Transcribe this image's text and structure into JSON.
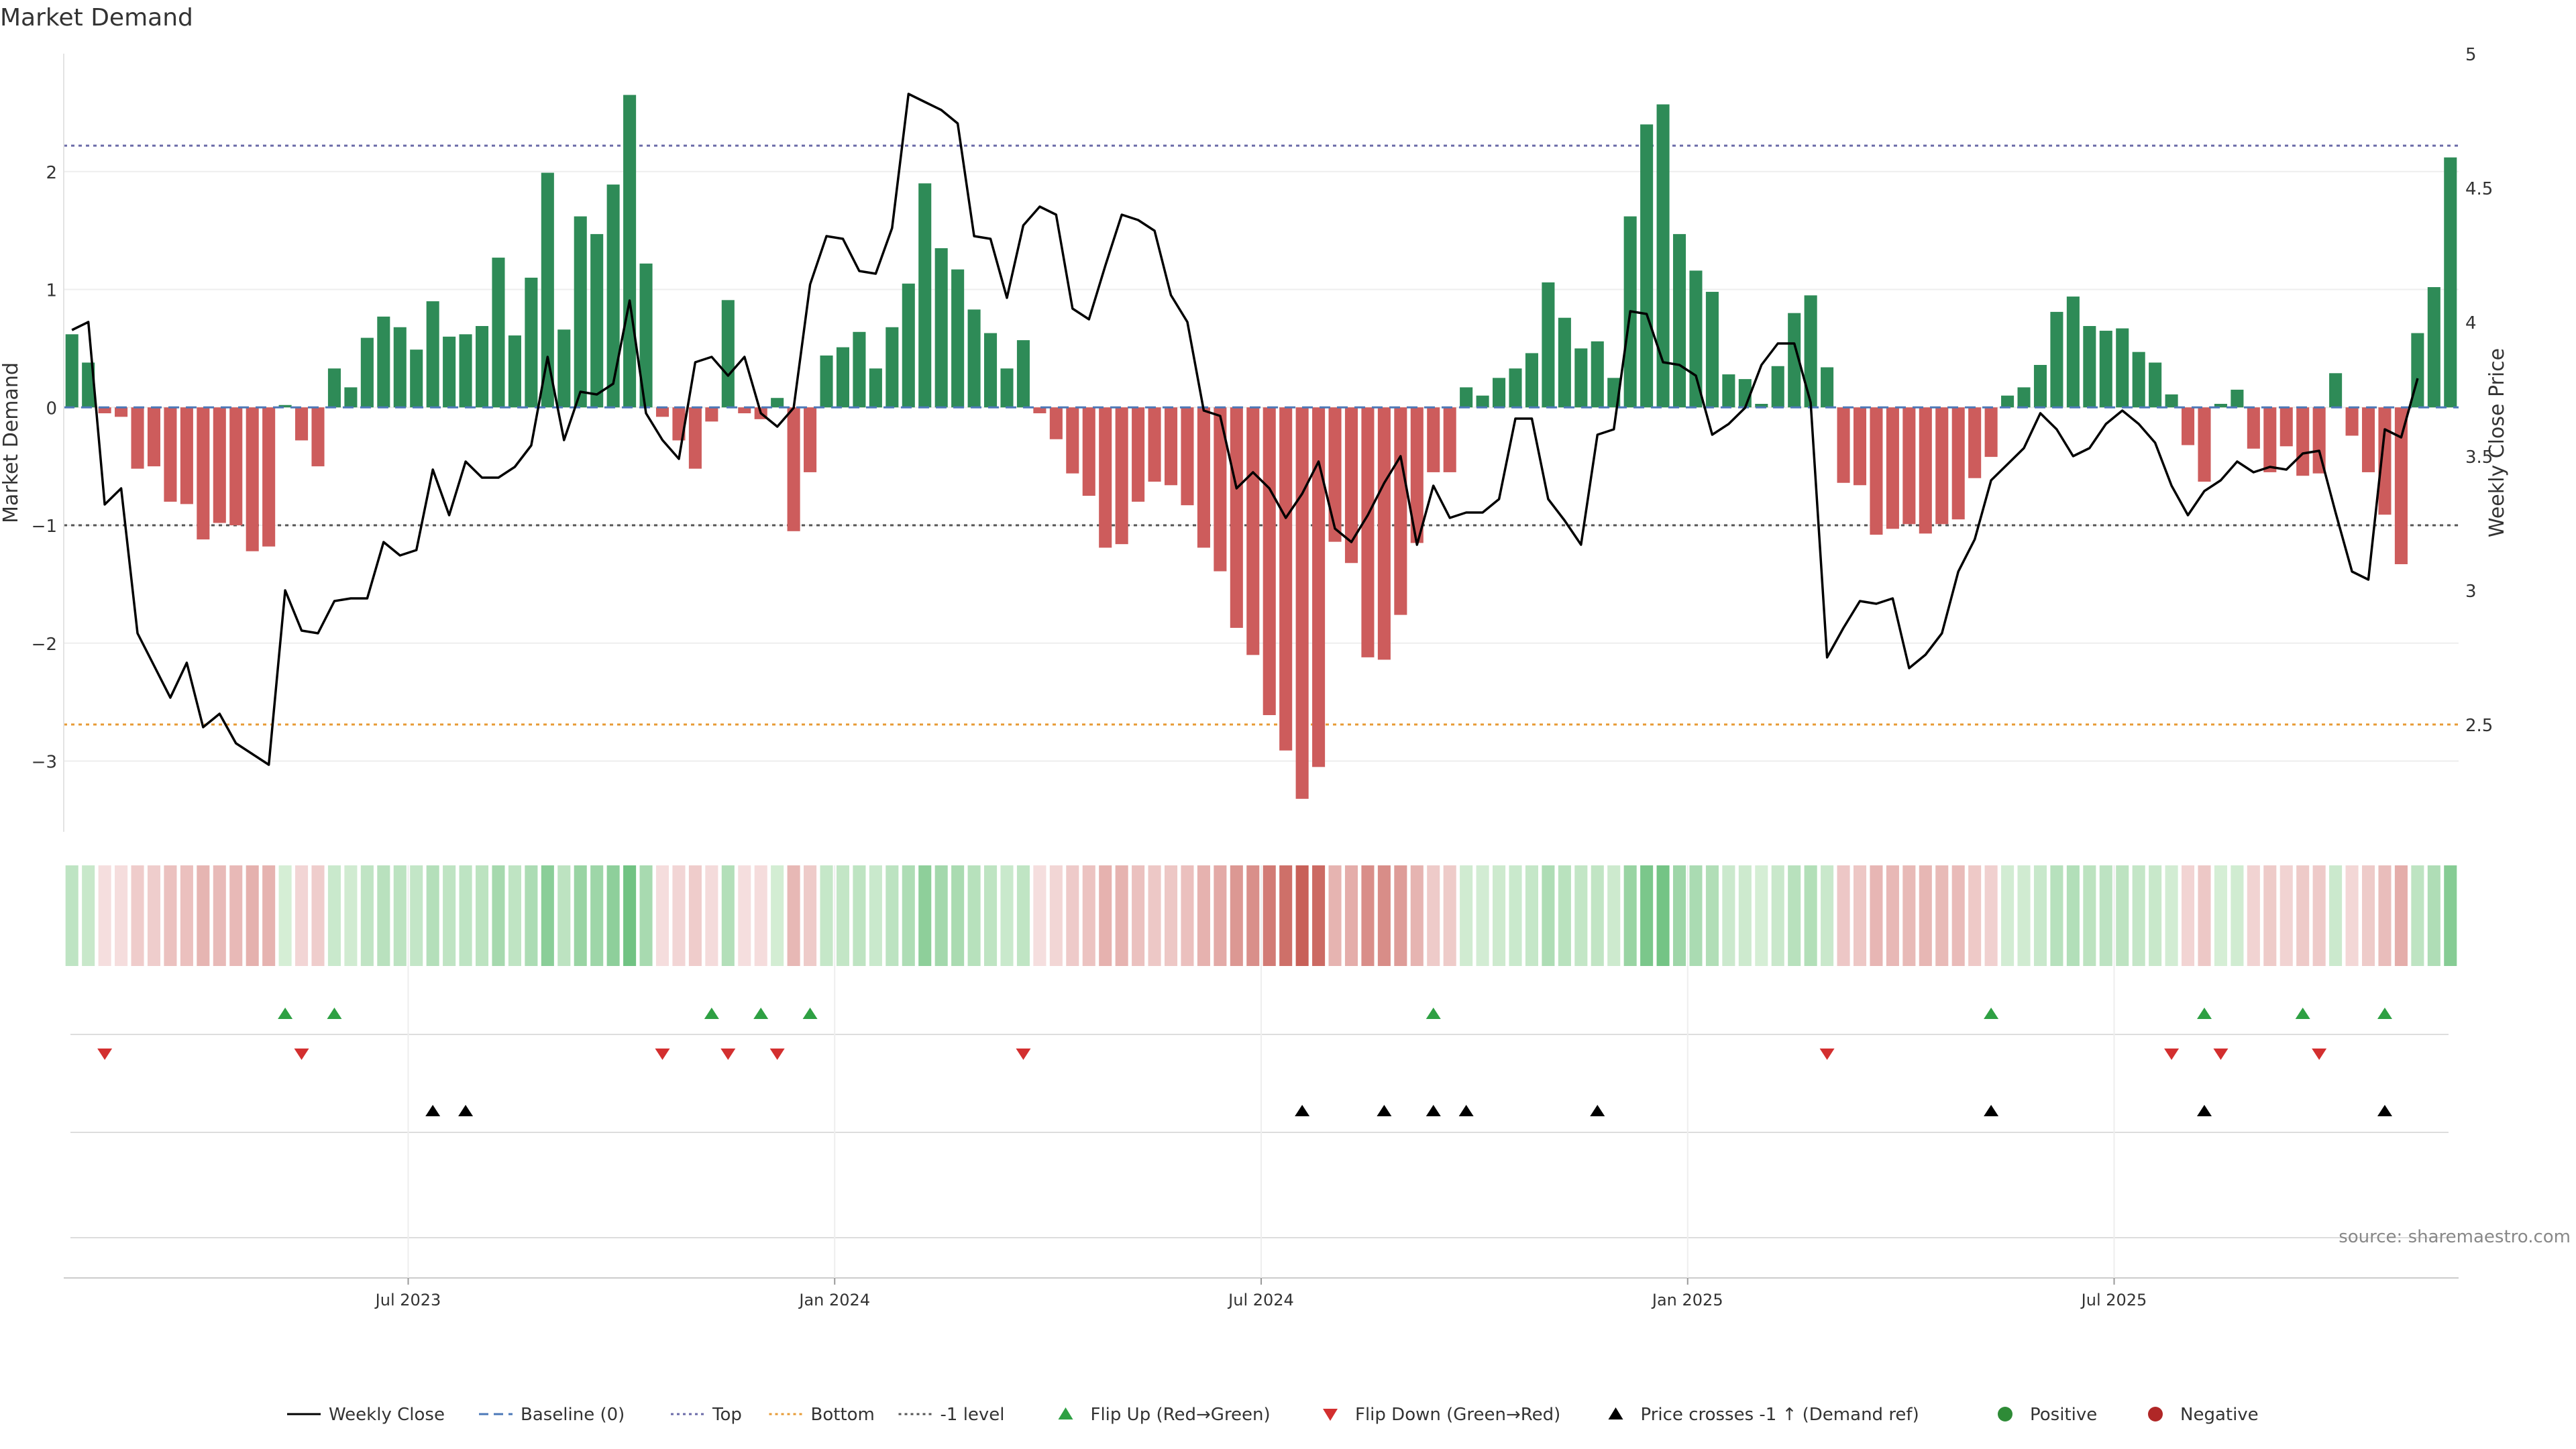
{
  "chart_data": {
    "type": "bar",
    "title": "Market Demand",
    "ylabel": "Market Demand",
    "y2label": "Weekly Close Price",
    "ylim": [
      -3.6,
      3.0
    ],
    "y2lim": [
      2.1,
      5.0
    ],
    "yticks": [
      2,
      1,
      0,
      -1,
      -2,
      -3
    ],
    "y2ticks": [
      5,
      4.5,
      4,
      3.5,
      3,
      2.5
    ],
    "ytick_labels": [
      "2",
      "1",
      "0",
      "−1",
      "−2",
      "−3"
    ],
    "y2tick_labels": [
      "5",
      "4.5",
      "4",
      "3.5",
      "3",
      "2.5"
    ],
    "levels": {
      "top": 2.22,
      "bottom": -2.69,
      "minus_one": -1.0,
      "baseline": 0
    },
    "x_start": "2023-02-05",
    "x_end": "2025-11-02",
    "x_tick_labels": [
      "Jul 2023",
      "Jan 2024",
      "Jul 2024",
      "Jan 2025",
      "Jul 2025"
    ],
    "x_tick_weeks": [
      21,
      47,
      73,
      99,
      125
    ],
    "demand": [
      0.62,
      0.38,
      -0.05,
      -0.08,
      -0.52,
      -0.5,
      -0.8,
      -0.82,
      -1.12,
      -0.98,
      -1.0,
      -1.22,
      -1.18,
      0.02,
      -0.28,
      -0.5,
      0.33,
      0.17,
      0.59,
      0.77,
      0.68,
      0.49,
      0.9,
      0.6,
      0.62,
      0.69,
      1.27,
      0.61,
      1.1,
      1.99,
      0.66,
      1.62,
      1.47,
      1.89,
      2.65,
      1.22,
      -0.08,
      -0.28,
      -0.52,
      -0.12,
      0.91,
      -0.05,
      -0.1,
      0.08,
      -1.05,
      -0.55,
      0.44,
      0.51,
      0.64,
      0.33,
      0.68,
      1.05,
      1.9,
      1.35,
      1.17,
      0.83,
      0.63,
      0.33,
      0.57,
      -0.05,
      -0.27,
      -0.56,
      -0.75,
      -1.19,
      -1.16,
      -0.8,
      -0.63,
      -0.66,
      -0.83,
      -1.19,
      -1.39,
      -1.87,
      -2.1,
      -2.61,
      -2.91,
      -3.32,
      -3.05,
      -1.14,
      -1.32,
      -2.12,
      -2.14,
      -1.76,
      -1.15,
      -0.55,
      -0.55,
      0.17,
      0.1,
      0.25,
      0.33,
      0.46,
      1.06,
      0.76,
      0.5,
      0.56,
      0.25,
      1.62,
      2.4,
      2.57,
      1.47,
      1.16,
      0.98,
      0.28,
      0.24,
      0.03,
      0.35,
      0.8,
      0.95,
      0.34,
      -0.64,
      -0.66,
      -1.08,
      -1.03,
      -0.99,
      -1.07,
      -0.99,
      -0.95,
      -0.6,
      -0.42,
      0.1,
      0.17,
      0.36,
      0.81,
      0.94,
      0.69,
      0.65,
      0.67,
      0.47,
      0.38,
      0.11,
      -0.32,
      -0.63,
      0.03,
      0.15,
      -0.35,
      -0.55,
      -0.33,
      -0.58,
      -0.56,
      0.29,
      -0.24,
      -0.55,
      -0.91,
      -1.33,
      0.63,
      1.02,
      2.12
    ],
    "close": [
      3.97,
      4.0,
      3.32,
      3.38,
      2.84,
      2.72,
      2.6,
      2.73,
      2.49,
      2.54,
      2.43,
      2.39,
      2.35,
      3.0,
      2.85,
      2.84,
      2.96,
      2.97,
      2.97,
      3.18,
      3.13,
      3.15,
      3.45,
      3.28,
      3.48,
      3.42,
      3.42,
      3.46,
      3.54,
      3.87,
      3.56,
      3.74,
      3.73,
      3.77,
      4.08,
      3.66,
      3.56,
      3.49,
      3.85,
      3.87,
      3.8,
      3.87,
      3.66,
      3.61,
      3.68,
      4.14,
      4.32,
      4.31,
      4.19,
      4.18,
      4.35,
      4.85,
      4.82,
      4.79,
      4.74,
      4.32,
      4.31,
      4.09,
      4.36,
      4.43,
      4.4,
      4.05,
      4.01,
      4.21,
      4.4,
      4.38,
      4.34,
      4.1,
      4.0,
      3.67,
      3.65,
      3.38,
      3.44,
      3.38,
      3.27,
      3.36,
      3.48,
      3.23,
      3.18,
      3.28,
      3.4,
      3.5,
      3.17,
      3.39,
      3.27,
      3.29,
      3.29,
      3.34,
      3.64,
      3.64,
      3.34,
      3.26,
      3.17,
      3.58,
      3.6,
      4.04,
      4.03,
      3.85,
      3.84,
      3.8,
      3.58,
      3.62,
      3.68,
      3.84,
      3.92,
      3.92,
      3.7,
      2.75,
      2.86,
      2.96,
      2.95,
      2.97,
      2.71,
      2.76,
      2.84,
      3.07,
      3.19,
      3.41,
      3.47,
      3.53,
      3.66,
      3.6,
      3.5,
      3.53,
      3.62,
      3.67,
      3.62,
      3.55,
      3.39,
      3.28,
      3.37,
      3.41,
      3.48,
      3.44,
      3.46,
      3.45,
      3.51,
      3.52,
      3.29,
      3.07,
      3.04,
      3.6,
      3.57,
      3.79
    ],
    "flip_up_weeks": [
      13,
      16,
      39,
      42,
      45,
      83,
      117,
      130,
      136,
      141
    ],
    "flip_down_weeks": [
      2,
      14,
      36,
      40,
      43,
      58,
      107,
      128,
      131,
      137
    ],
    "price_cross_weeks": [
      22,
      24,
      75,
      80,
      83,
      85,
      93,
      117,
      130,
      141
    ],
    "legend": [
      {
        "label": "Weekly Close",
        "kind": "line",
        "color": "#000000",
        "dash": "solid"
      },
      {
        "label": "Baseline (0)",
        "kind": "line",
        "color": "#4c78b8",
        "dash": "dashed"
      },
      {
        "label": "Top",
        "kind": "line",
        "color": "#6b6ba8",
        "dash": "dotted"
      },
      {
        "label": "Bottom",
        "kind": "line",
        "color": "#e79b35",
        "dash": "dotted"
      },
      {
        "label": "-1 level",
        "kind": "line",
        "color": "#555555",
        "dash": "dotted"
      },
      {
        "label": "Flip Up (Red→Green)",
        "kind": "tri-up",
        "color": "#2ea043"
      },
      {
        "label": "Flip Down (Green→Red)",
        "kind": "tri-down",
        "color": "#d32f2f"
      },
      {
        "label": "Price crosses -1 ↑ (Demand ref)",
        "kind": "tri-up",
        "color": "#000000"
      },
      {
        "label": "Positive",
        "kind": "dot",
        "color": "#2e8b37"
      },
      {
        "label": "Negative",
        "kind": "dot",
        "color": "#b02727"
      }
    ]
  },
  "colors": {
    "positive_bar": "#2e8b57",
    "negative_bar": "#cd5c5c",
    "price_line": "#000000",
    "flip_up": "#2ea043",
    "flip_down": "#d32f2f",
    "price_cross": "#000000"
  },
  "source": "source: sharemaestro.com"
}
